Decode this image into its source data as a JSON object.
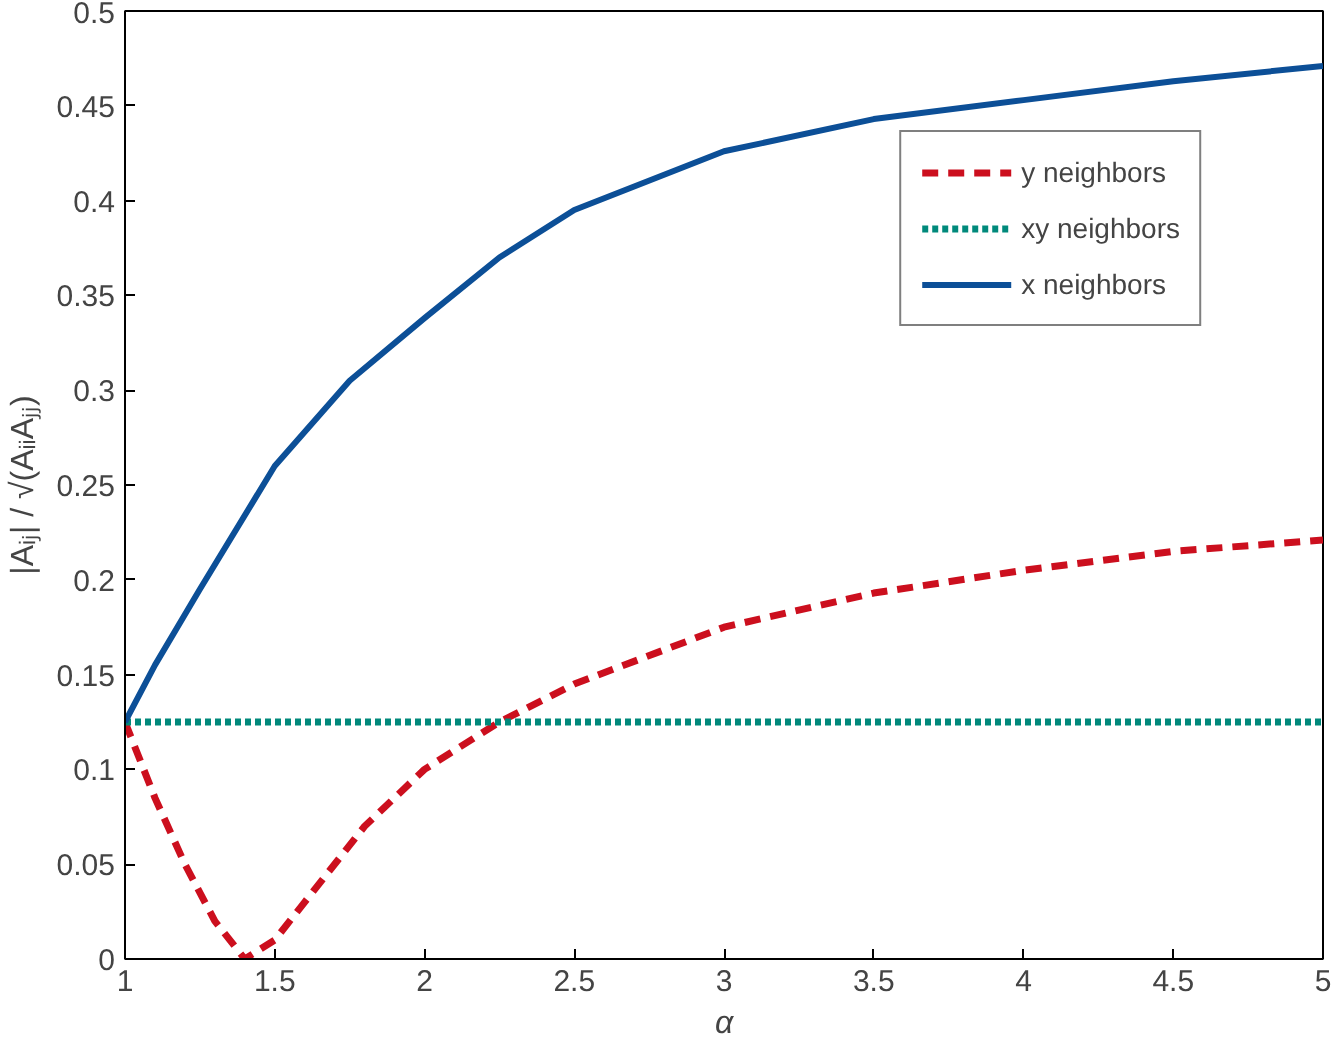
{
  "chart_data": {
    "type": "line",
    "xlabel": "α",
    "ylabel": "|Aᵢⱼ| / √(AᵢᵢAⱼⱼ)",
    "xlim": [
      1,
      5
    ],
    "ylim": [
      0,
      0.5
    ],
    "xticks": [
      1,
      1.5,
      2,
      2.5,
      3,
      3.5,
      4,
      4.5,
      5
    ],
    "yticks": [
      0,
      0.05,
      0.1,
      0.15,
      0.2,
      0.25,
      0.3,
      0.35,
      0.4,
      0.45,
      0.5
    ],
    "grid": false,
    "legend": "top right",
    "marker": "none",
    "series": [
      {
        "name": "y neighbors",
        "color": "#cc0f1e",
        "line_style": "dashed",
        "x": [
          1,
          1.1,
          1.2,
          1.3,
          1.4,
          1.5,
          1.6,
          1.8,
          2,
          2.25,
          2.5,
          3,
          3.5,
          4,
          4.5,
          5
        ],
        "values": [
          0.125,
          0.085,
          0.05,
          0.02,
          0.0,
          0.01,
          0.03,
          0.07,
          0.1,
          0.125,
          0.145,
          0.175,
          0.193,
          0.205,
          0.215,
          0.221
        ]
      },
      {
        "name": "xy neighbors",
        "color": "#00897b",
        "line_style": "dotted",
        "x": [
          1,
          5
        ],
        "values": [
          0.125,
          0.125
        ]
      },
      {
        "name": "x neighbors",
        "color": "#0c4f97",
        "line_style": "solid",
        "x": [
          1,
          1.1,
          1.25,
          1.5,
          1.75,
          2,
          2.25,
          2.5,
          3,
          3.5,
          4,
          4.5,
          5
        ],
        "values": [
          0.125,
          0.155,
          0.195,
          0.26,
          0.305,
          0.338,
          0.37,
          0.395,
          0.426,
          0.443,
          0.453,
          0.463,
          0.471
        ]
      }
    ]
  }
}
